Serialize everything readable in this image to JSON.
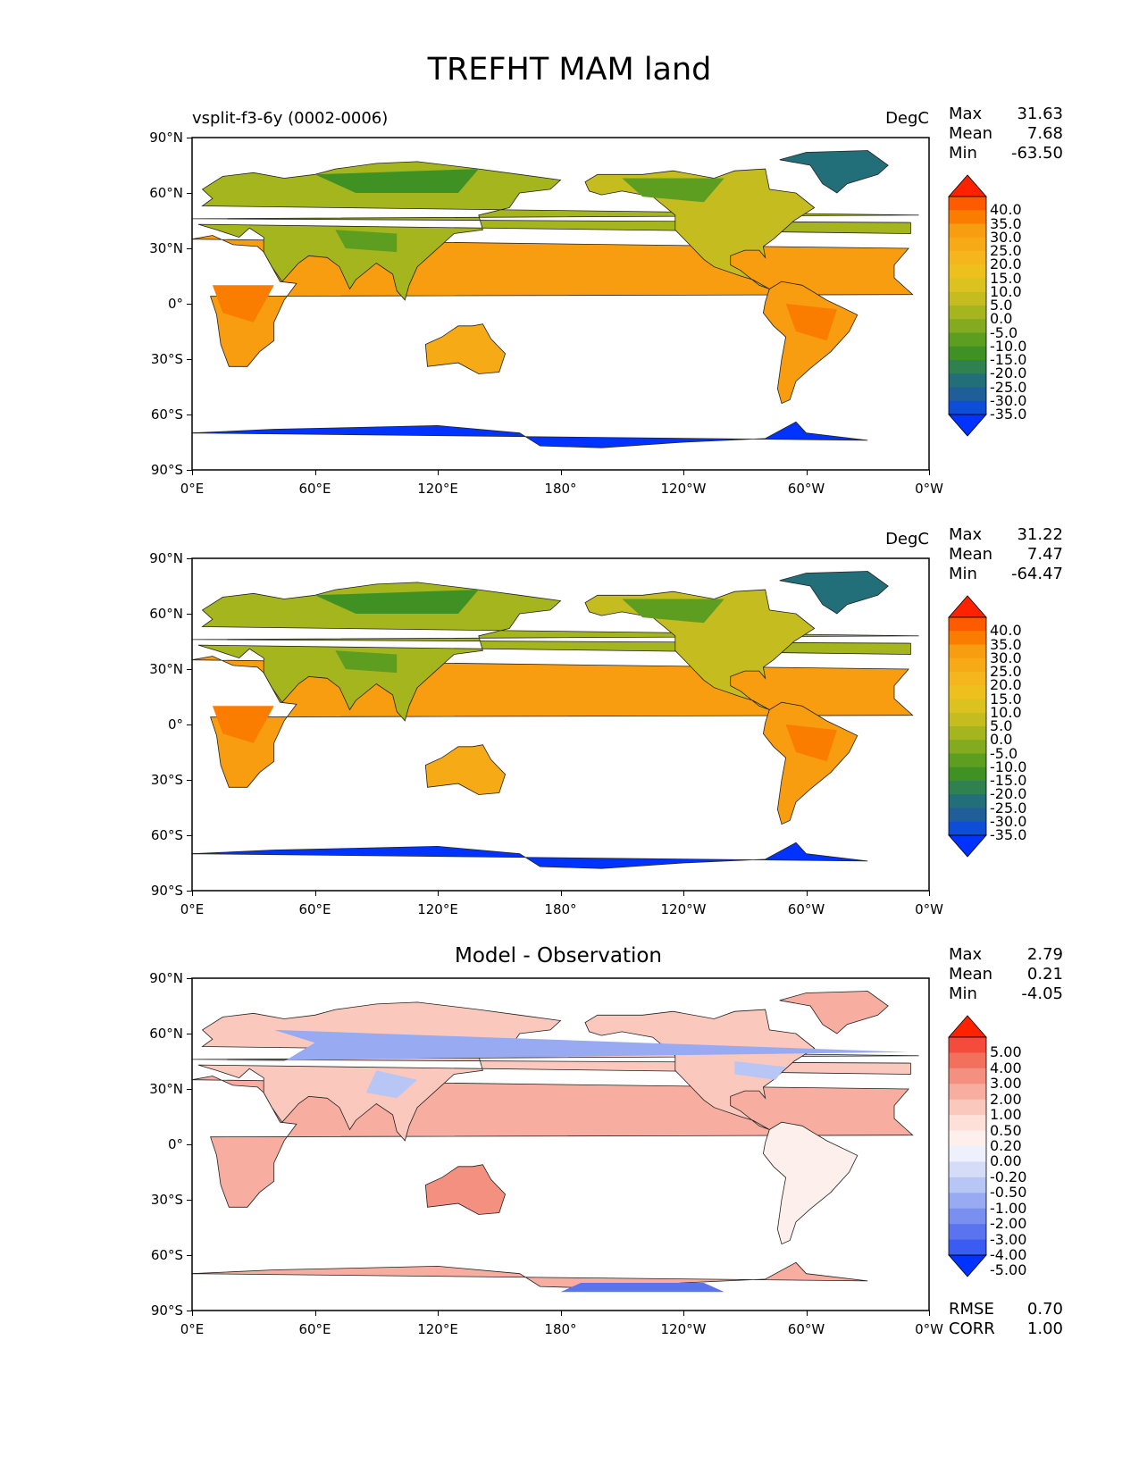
{
  "page_title": "TREFHT MAM land",
  "x_ticks": [
    "0°E",
    "60°E",
    "120°E",
    "180°",
    "120°W",
    "60°W",
    "0°W"
  ],
  "y_ticks": [
    "90°N",
    "60°N",
    "30°N",
    "0°",
    "30°S",
    "60°S",
    "90°S"
  ],
  "panels": [
    {
      "left_title": "vsplit-f3-6y (0002-0006)",
      "center_title": "",
      "units": "DegC",
      "stats": [
        {
          "label": "Max",
          "value": "31.63"
        },
        {
          "label": "Mean",
          "value": "7.68"
        },
        {
          "label": "Min",
          "value": "-63.50"
        }
      ],
      "colorbar_levels": [
        "40.0",
        "35.0",
        "30.0",
        "25.0",
        "20.0",
        "15.0",
        "10.0",
        "5.0",
        "0.0",
        "-5.0",
        "-10.0",
        "-15.0",
        "-20.0",
        "-25.0",
        "-30.0",
        "-35.0"
      ],
      "colorbar_colors": [
        "#ff2200",
        "#fe5a00",
        "#fb7d00",
        "#f89c10",
        "#f6ab16",
        "#f5b61d",
        "#eec01e",
        "#dcc21f",
        "#c5bd1f",
        "#a5b51e",
        "#84aa20",
        "#5d9d20",
        "#3f9124",
        "#2f8150",
        "#226e79",
        "#1f5e98",
        "#0d4dd8",
        "#0033ff"
      ],
      "extra_stats": []
    },
    {
      "left_title": "",
      "center_title": "",
      "units": "DegC",
      "stats": [
        {
          "label": "Max",
          "value": "31.22"
        },
        {
          "label": "Mean",
          "value": "7.47"
        },
        {
          "label": "Min",
          "value": "-64.47"
        }
      ],
      "colorbar_levels": [
        "40.0",
        "35.0",
        "30.0",
        "25.0",
        "20.0",
        "15.0",
        "10.0",
        "5.0",
        "0.0",
        "-5.0",
        "-10.0",
        "-15.0",
        "-20.0",
        "-25.0",
        "-30.0",
        "-35.0"
      ],
      "colorbar_colors": [
        "#ff2200",
        "#fe5a00",
        "#fb7d00",
        "#f89c10",
        "#f6ab16",
        "#f5b61d",
        "#eec01e",
        "#dcc21f",
        "#c5bd1f",
        "#a5b51e",
        "#84aa20",
        "#5d9d20",
        "#3f9124",
        "#2f8150",
        "#226e79",
        "#1f5e98",
        "#0d4dd8",
        "#0033ff"
      ],
      "extra_stats": []
    },
    {
      "left_title": "",
      "center_title": "Model - Observation",
      "units": "",
      "stats": [
        {
          "label": "Max",
          "value": "2.79"
        },
        {
          "label": "Mean",
          "value": "0.21"
        },
        {
          "label": "Min",
          "value": "-4.05"
        }
      ],
      "colorbar_levels": [
        "5.00",
        "4.00",
        "3.00",
        "2.00",
        "1.00",
        "0.50",
        "0.20",
        "0.00",
        "-0.20",
        "-0.50",
        "-1.00",
        "-2.00",
        "-3.00",
        "-4.00",
        "-5.00"
      ],
      "colorbar_colors": [
        "#ff2200",
        "#f34c3c",
        "#f2705c",
        "#f39080",
        "#f7ada0",
        "#fbc8bd",
        "#fde0d8",
        "#fdf0ec",
        "#eef0fb",
        "#d5dcf8",
        "#b8c6f5",
        "#97aaf2",
        "#7a90f0",
        "#5a74f0",
        "#3a5cf3",
        "#0033ff"
      ],
      "extra_stats": [
        {
          "label": "RMSE",
          "value": "0.70"
        },
        {
          "label": "CORR",
          "value": "1.00"
        }
      ]
    }
  ]
}
